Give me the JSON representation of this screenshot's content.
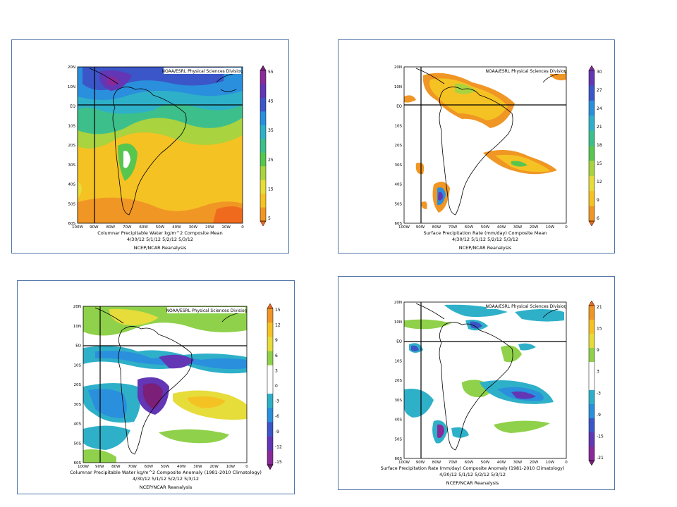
{
  "panels": [
    {
      "id": "pw-mean",
      "credit": "NOAA/ESRL Physical Sciences Division",
      "title_lines": [
        "Columnar Precipitable Water kg/m^2 Composite Mean",
        "4/30/12 5/1/12 5/2/12 5/3/12"
      ],
      "source": "NCEP/NCAR Reanalysis",
      "lat_labels": [
        "20N",
        "10N",
        "EQ",
        "10S",
        "20S",
        "30S",
        "40S",
        "50S",
        "60S"
      ],
      "lon_labels": [
        "100W",
        "90W",
        "80W",
        "70W",
        "60W",
        "50W",
        "40W",
        "30W",
        "20W",
        "10W",
        "0"
      ],
      "colorbar": {
        "labels": [
          "55",
          "45",
          "35",
          "25",
          "15",
          "5"
        ],
        "colors": [
          "#f06a1d",
          "#f09624",
          "#f5c223",
          "#e6dc3a",
          "#a9d33f",
          "#57c64f",
          "#3dbf8c",
          "#2fb0c9",
          "#2a8fdc",
          "#3b56c8",
          "#6236b5",
          "#8a2a9a",
          "#7b1f78"
        ]
      }
    },
    {
      "id": "pr-mean",
      "credit": "NOAA/ESRL Physical Sciences Division",
      "title_lines": [
        "Surface Precipitation Rate (mm/day) Composite Mean",
        "4/30/12 5/1/12 5/2/12 5/3/12"
      ],
      "source": "NCEP/NCAR Reanalysis",
      "lat_labels": [
        "20N",
        "10N",
        "EQ",
        "10S",
        "20S",
        "30S",
        "40S",
        "50S",
        "60S"
      ],
      "lon_labels": [
        "100W",
        "90W",
        "80W",
        "70W",
        "60W",
        "50W",
        "40W",
        "30W",
        "20W",
        "10W",
        "0"
      ],
      "colorbar": {
        "labels": [
          "30",
          "27",
          "24",
          "21",
          "18",
          "15",
          "12",
          "9",
          "6"
        ],
        "colors": [
          "#f06a1d",
          "#f09624",
          "#f5c223",
          "#e6dc3a",
          "#a9d33f",
          "#57c64f",
          "#3dbf8c",
          "#2fb0c9",
          "#2a8fdc",
          "#3b56c8",
          "#6236b5",
          "#8a2a9a"
        ]
      }
    },
    {
      "id": "pw-anom",
      "credit": "NOAA/ESRL Physical Sciences Division",
      "title_lines": [
        "Columnar Precipitable Water kg/m^2 Composite Anomaly (1981-2010 Climatology)",
        "4/30/12 5/1/12 5/2/12 5/3/12"
      ],
      "source": "NCEP/NCAR Reanalysis",
      "lat_labels": [
        "20N",
        "10N",
        "EQ",
        "10S",
        "20S",
        "30S",
        "40S",
        "50S",
        "60S"
      ],
      "lon_labels": [
        "100W",
        "90W",
        "80W",
        "70W",
        "60W",
        "50W",
        "40W",
        "30W",
        "20W",
        "10W",
        "0"
      ],
      "colorbar": {
        "labels": [
          "15",
          "12",
          "9",
          "6",
          "3",
          "0",
          "-3",
          "-6",
          "-9",
          "-12",
          "-15"
        ],
        "colors": [
          "#7b1f78",
          "#8a2a9a",
          "#6236b5",
          "#3b56c8",
          "#2a8fdc",
          "#2fb0c9",
          "#ffffff",
          "#ffffff",
          "#8fd14a",
          "#e6dc3a",
          "#f5c223",
          "#f09624",
          "#f06a1d"
        ]
      }
    },
    {
      "id": "pr-anom",
      "credit": "NOAA/ESRL Physical Sciences Division",
      "title_lines": [
        "Surface Precipitation Rate (mm/day) Composite Anomaly (1981-2010 Climatology)",
        "4/30/12 5/1/12 5/2/12 5/3/12"
      ],
      "source": "NCEP/NCAR Reanalysis",
      "lat_labels": [
        "20N",
        "10N",
        "EQ",
        "10S",
        "20S",
        "30S",
        "40S",
        "50S",
        "60S"
      ],
      "lon_labels": [
        "100W",
        "90W",
        "80W",
        "70W",
        "60W",
        "50W",
        "40W",
        "30W",
        "20W",
        "10W",
        "0"
      ],
      "colorbar": {
        "labels": [
          "21",
          "15",
          "9",
          "3",
          "-3",
          "-9",
          "-15",
          "-21"
        ],
        "colors": [
          "#7b1f78",
          "#8a2a9a",
          "#6236b5",
          "#3b56c8",
          "#2a8fdc",
          "#2fb0c9",
          "#ffffff",
          "#ffffff",
          "#8fd14a",
          "#e6dc3a",
          "#f5c223",
          "#f09624",
          "#f06a1d"
        ]
      }
    }
  ]
}
